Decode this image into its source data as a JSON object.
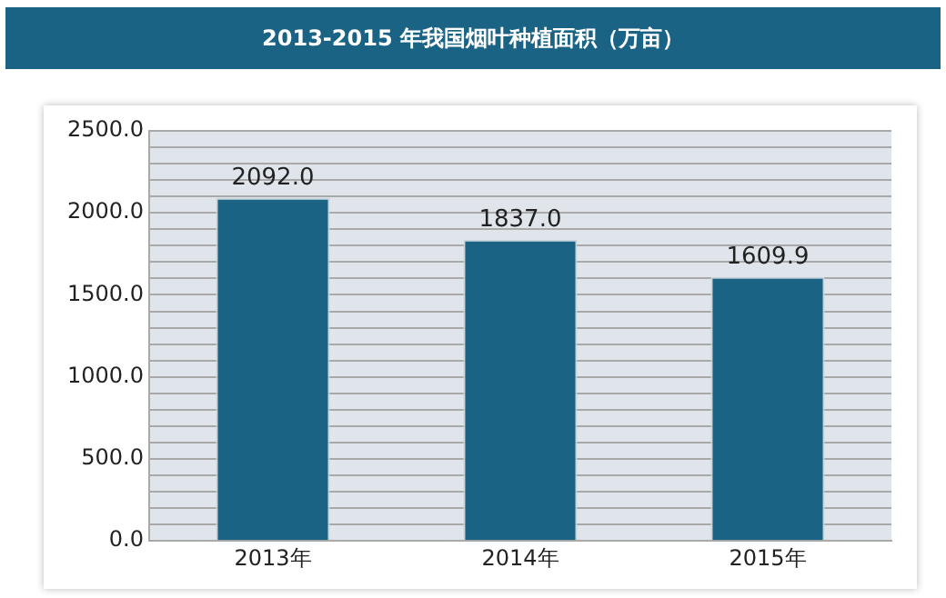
{
  "chart_data": {
    "type": "bar",
    "title": "2013-2015 年我国烟叶种植面积（万亩）",
    "categories": [
      "2013年",
      "2014年",
      "2015年"
    ],
    "values": [
      2092,
      1837,
      1609.9
    ],
    "value_labels": [
      "2092.0",
      "1837.0",
      "1609.9"
    ],
    "color": "#1b6384",
    "ylim": [
      0,
      2500
    ],
    "yticks": [
      {
        "value": 0,
        "label": "0.0"
      },
      {
        "value": 100,
        "label": null
      },
      {
        "value": 200,
        "label": null
      },
      {
        "value": 300,
        "label": null
      },
      {
        "value": 400,
        "label": null
      },
      {
        "value": 500,
        "label": "500.0"
      },
      {
        "value": 600,
        "label": null
      },
      {
        "value": 700,
        "label": null
      },
      {
        "value": 800,
        "label": null
      },
      {
        "value": 900,
        "label": null
      },
      {
        "value": 1000,
        "label": "1000.0"
      },
      {
        "value": 1100,
        "label": null
      },
      {
        "value": 1200,
        "label": null
      },
      {
        "value": 1300,
        "label": null
      },
      {
        "value": 1400,
        "label": null
      },
      {
        "value": 1500,
        "label": "1500.0"
      },
      {
        "value": 1600,
        "label": null
      },
      {
        "value": 1700,
        "label": null
      },
      {
        "value": 1800,
        "label": null
      },
      {
        "value": 1900,
        "label": null
      },
      {
        "value": 2000,
        "label": "2000.0"
      },
      {
        "value": 2100,
        "label": null
      },
      {
        "value": 2200,
        "label": null
      },
      {
        "value": 2300,
        "label": null
      },
      {
        "value": 2400,
        "label": null
      },
      {
        "value": 2500,
        "label": "2500.0"
      }
    ],
    "grid": "y"
  }
}
